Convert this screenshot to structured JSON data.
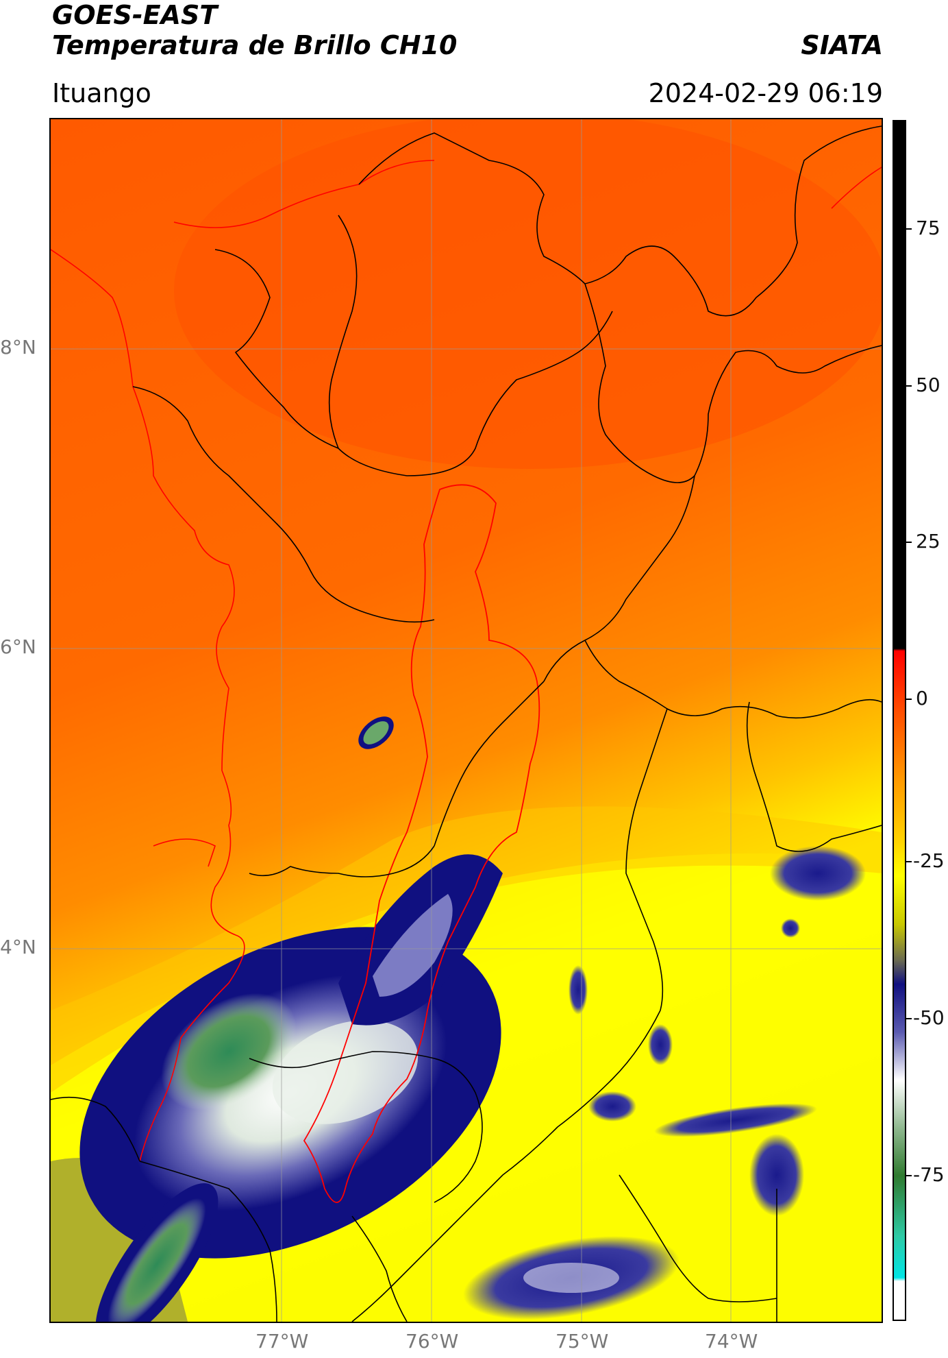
{
  "header": {
    "satellite": "GOES-EAST",
    "product": "Temperatura de Brillo CH10",
    "agency": "SIATA",
    "region": "Ituango",
    "datetime": "2024-02-29 06:19"
  },
  "map": {
    "lat_labels": [
      "8°N",
      "6°N",
      "4°N"
    ],
    "lon_labels": [
      "77°W",
      "76°W",
      "75°W",
      "74°W"
    ]
  },
  "colorbar": {
    "tick_labels": [
      "75",
      "50",
      "25",
      "0",
      "-25",
      "-50",
      "-75"
    ],
    "colors": {
      "black": "#000000",
      "red": "#ff0000",
      "orange": "#ff8a00",
      "yellow": "#ffff00",
      "olive": "#8f8f3d",
      "navy": "#101080",
      "white": "#ffffff",
      "green": "#2f7a2f",
      "teal": "#2ec9a4",
      "cyan": "#00e5e5"
    }
  }
}
